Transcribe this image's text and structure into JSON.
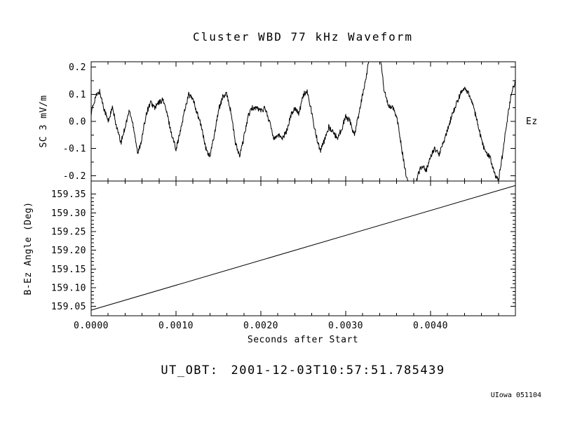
{
  "title": "Cluster WBD 77 kHz Waveform",
  "footer": {
    "ut_obt_label": "UT_OBT:",
    "ut_obt_value": "2001-12-03T10:57:51.785439",
    "credit": "UIowa 051104"
  },
  "colors": {
    "foreground": "#000000",
    "background": "#ffffff"
  },
  "chart_data": [
    {
      "type": "line",
      "name": "wbd-waveform",
      "ylabel": "SC 3 mV/m",
      "right_label": "Ez",
      "xlim": [
        0.0,
        0.005
      ],
      "ylim": [
        -0.22,
        0.22
      ],
      "yticks": [
        0.2,
        0.1,
        0.0,
        -0.1,
        -0.2
      ],
      "ytick_labels": [
        "0.2",
        "0.1",
        "0.0",
        "-0.1",
        "-0.2"
      ],
      "xticks": [
        0.0,
        0.001,
        0.002,
        0.003,
        0.004
      ],
      "xtick_labels": [],
      "grid": false,
      "noisy": true,
      "x0": 0.0,
      "dx": 5e-05,
      "values": [
        0.03,
        0.09,
        0.11,
        0.05,
        0.0,
        0.05,
        -0.02,
        -0.08,
        -0.02,
        0.04,
        -0.02,
        -0.12,
        -0.06,
        0.03,
        0.07,
        0.05,
        0.07,
        0.08,
        0.02,
        -0.05,
        -0.1,
        -0.04,
        0.04,
        0.1,
        0.08,
        0.03,
        -0.02,
        -0.1,
        -0.13,
        -0.05,
        0.04,
        0.09,
        0.1,
        0.03,
        -0.08,
        -0.13,
        -0.06,
        0.02,
        0.05,
        0.05,
        0.04,
        0.05,
        0.0,
        -0.06,
        -0.05,
        -0.06,
        -0.04,
        0.02,
        0.05,
        0.03,
        0.1,
        0.11,
        0.03,
        -0.05,
        -0.11,
        -0.07,
        -0.02,
        -0.04,
        -0.06,
        -0.03,
        0.02,
        0.0,
        -0.05,
        0.02,
        0.1,
        0.18,
        0.3,
        0.34,
        0.26,
        0.12,
        0.06,
        0.05,
        0.02,
        -0.08,
        -0.18,
        -0.24,
        -0.26,
        -0.2,
        -0.16,
        -0.18,
        -0.13,
        -0.1,
        -0.12,
        -0.08,
        -0.03,
        0.02,
        0.06,
        0.1,
        0.12,
        0.1,
        0.06,
        0.0,
        -0.07,
        -0.12,
        -0.13,
        -0.19,
        -0.22,
        -0.12,
        0.0,
        0.1,
        0.15
      ]
    },
    {
      "type": "line",
      "name": "b-ez-angle",
      "ylabel": "B-Ez Angle (Deg)",
      "xlabel": "Seconds after Start",
      "xlim": [
        0.0,
        0.005
      ],
      "ylim": [
        159.025,
        159.385
      ],
      "yticks": [
        159.35,
        159.3,
        159.25,
        159.2,
        159.15,
        159.1,
        159.05
      ],
      "ytick_labels": [
        "159.35",
        "159.30",
        "159.25",
        "159.20",
        "159.15",
        "159.10",
        "159.05"
      ],
      "xticks": [
        0.0,
        0.001,
        0.002,
        0.003,
        0.004
      ],
      "xtick_labels": [
        "0.0000",
        "0.0010",
        "0.0020",
        "0.0030",
        "0.0040"
      ],
      "grid": false,
      "noisy": false,
      "x0": 0.0,
      "dx": 0.005,
      "values": [
        159.04,
        159.373
      ]
    }
  ]
}
